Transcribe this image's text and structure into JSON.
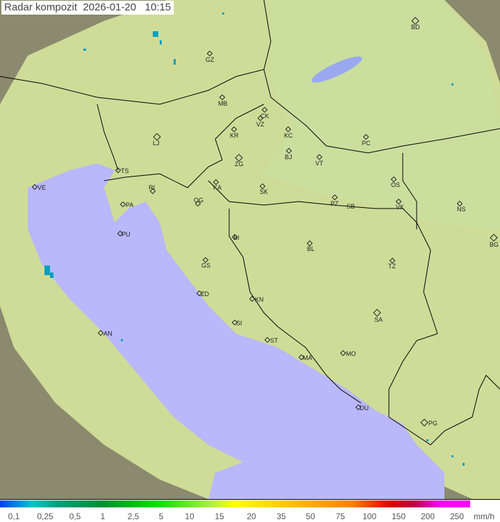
{
  "title": "Radar kompozit  2026-01-20   10:15",
  "colors": {
    "sea": "#b8b8f8",
    "land": "#d8e4a0",
    "outside": "#8a8a70",
    "border": "#000000"
  },
  "cities": [
    "GZ",
    "BD",
    "MB",
    "CK",
    "VZ",
    "KR",
    "KC",
    "LJ",
    "PC",
    "ZG",
    "BJ",
    "VT",
    "TS",
    "VE",
    "RI",
    "KA",
    "SK",
    "OS",
    "PA",
    "OG",
    "PZ",
    "SB",
    "VK",
    "NS",
    "PU",
    "BI",
    "BL",
    "BG",
    "GS",
    "TZ",
    "ZD",
    "KN",
    "SA",
    "AN",
    "SI",
    "ST",
    "MO",
    "MA",
    "DU",
    "PG"
  ],
  "legend": {
    "ticks": [
      "0,1",
      "0,25",
      "0,5",
      "1",
      "2,5",
      "5",
      "10",
      "15",
      "20",
      "35",
      "50",
      "75",
      "100",
      "150",
      "200",
      "250"
    ],
    "unit": "mm/h"
  }
}
